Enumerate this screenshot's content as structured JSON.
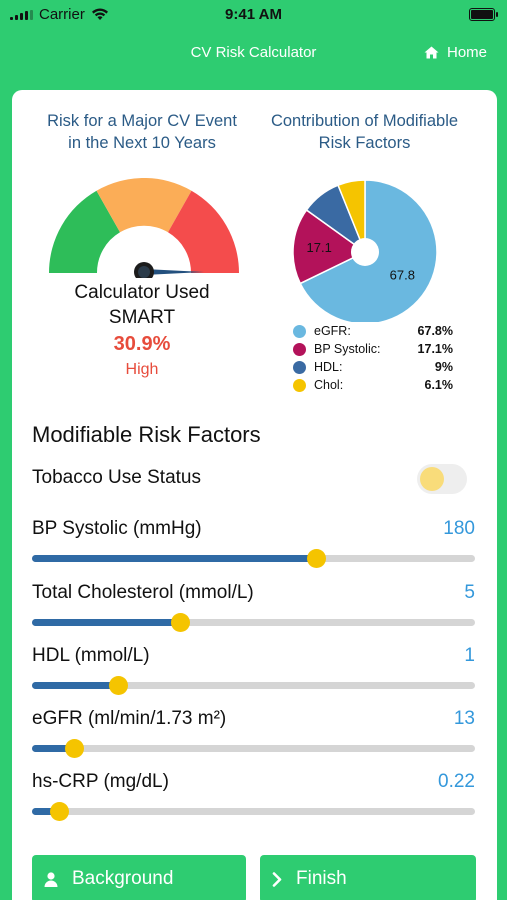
{
  "status_bar": {
    "carrier": "Carrier",
    "time": "9:41 AM"
  },
  "nav": {
    "title": "CV Risk Calculator",
    "home_label": "Home"
  },
  "risk": {
    "title_line1": "Risk for a Major CV Event",
    "title_line2": "in the Next 10 Years",
    "calc_line1": "Calculator Used",
    "calc_line2": "SMART",
    "value": "30.9%",
    "level": "High"
  },
  "contribution": {
    "title_line1": "Contribution of Modifiable",
    "title_line2": "Risk Factors",
    "items": [
      {
        "name": "eGFR:",
        "pct": "67.8%",
        "value": 67.8,
        "label": "67.8",
        "color": "#6ab8e0"
      },
      {
        "name": "BP Systolic:",
        "pct": "17.1%",
        "value": 17.1,
        "label": "17.1",
        "color": "#b3125a"
      },
      {
        "name": "HDL:",
        "pct": "9%",
        "value": 9,
        "label": "",
        "color": "#3a6aa3"
      },
      {
        "name": "Chol:",
        "pct": "6.1%",
        "value": 6.1,
        "label": "",
        "color": "#f5c400"
      }
    ]
  },
  "modifiable": {
    "title": "Modifiable Risk Factors",
    "tobacco_label": "Tobacco Use Status",
    "tobacco_on": false,
    "sliders": [
      {
        "label": "BP Systolic (mmHg)",
        "value": "180",
        "fraction": 0.64
      },
      {
        "label": "Total Cholesterol (mmol/L)",
        "value": "5",
        "fraction": 0.335
      },
      {
        "label": "HDL (mmol/L)",
        "value": "1",
        "fraction": 0.195
      },
      {
        "label": "eGFR (ml/min/1.73 m²)",
        "value": "13",
        "fraction": 0.095
      },
      {
        "label": "hs-CRP (mg/dL)",
        "value": "0.22",
        "fraction": 0.06
      }
    ]
  },
  "buttons": {
    "background": "Background",
    "finish": "Finish"
  },
  "colors": {
    "brand_green": "#2ecc71",
    "title_blue": "#2b5b86",
    "risk_red": "#e74c3c",
    "value_blue": "#3498db",
    "track_fill": "#2f6aa5",
    "thumb_yellow": "#f5c400",
    "gauge_green": "#2ebd59",
    "gauge_orange": "#fbad57",
    "gauge_red": "#f44c4c"
  }
}
